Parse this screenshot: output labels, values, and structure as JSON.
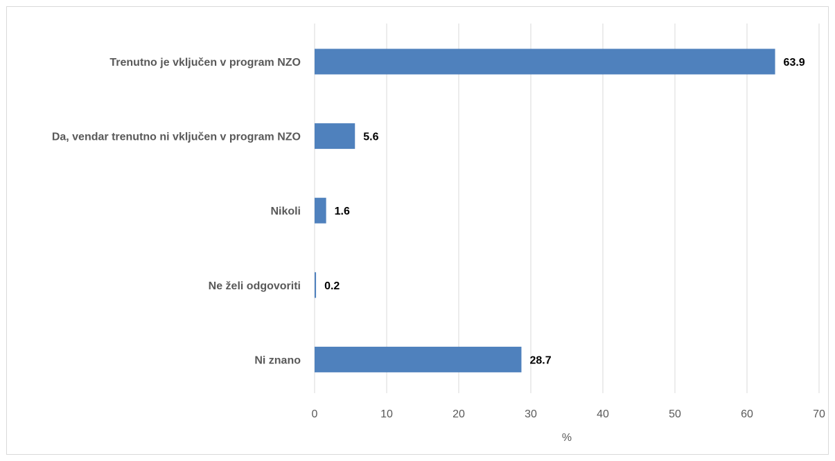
{
  "chart_data": {
    "type": "bar",
    "orientation": "horizontal",
    "categories": [
      "Trenutno je vključen v program NZO",
      "Da, vendar trenutno ni vključen v program NZO",
      "Nikoli",
      "Ne želi odgovoriti",
      "Ni znano"
    ],
    "values": [
      63.9,
      5.6,
      1.6,
      0.2,
      28.7
    ],
    "value_labels": [
      "63.9",
      "5.6",
      "1.6",
      "0.2",
      "28.7"
    ],
    "xlabel": "%",
    "xlim": [
      0,
      70
    ],
    "xticks": [
      0,
      10,
      20,
      30,
      40,
      50,
      60,
      70
    ],
    "grid": "vertical",
    "bar_color": "#4f81bd",
    "gridline_color": "#d9d9d9"
  }
}
